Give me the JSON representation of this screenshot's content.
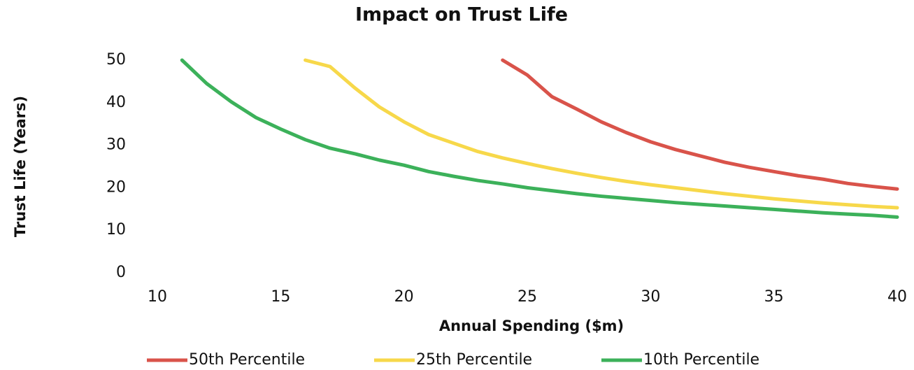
{
  "chart_data": {
    "type": "line",
    "title": "Impact on Trust Life",
    "x_label": "Annual Spending ($m)",
    "y_label": "Trust  Life (Years)",
    "x": [
      10,
      11,
      12,
      13,
      14,
      15,
      16,
      17,
      18,
      19,
      20,
      21,
      22,
      23,
      24,
      25,
      26,
      27,
      28,
      29,
      30,
      31,
      32,
      33,
      34,
      35,
      36,
      37,
      38,
      39,
      40
    ],
    "series": [
      {
        "name": "50th Percentile",
        "color": "#d9534a",
        "values": [
          null,
          null,
          null,
          null,
          null,
          null,
          null,
          null,
          null,
          null,
          null,
          null,
          null,
          null,
          50,
          46.5,
          41.4,
          38.5,
          35.5,
          33,
          30.8,
          29,
          27.5,
          26,
          24.8,
          23.8,
          22.8,
          22,
          21,
          20.3,
          19.7
        ]
      },
      {
        "name": "25th Percentile",
        "color": "#f7d84a",
        "values": [
          null,
          null,
          null,
          null,
          null,
          null,
          50,
          48.5,
          43.5,
          39,
          35.5,
          32.5,
          30.5,
          28.5,
          27,
          25.7,
          24.5,
          23.4,
          22.4,
          21.5,
          20.7,
          20,
          19.3,
          18.6,
          18,
          17.4,
          16.9,
          16.4,
          16,
          15.6,
          15.3
        ]
      },
      {
        "name": "10th Percentile",
        "color": "#3cb15a",
        "values": [
          null,
          50,
          44.5,
          40.2,
          36.5,
          33.8,
          31.3,
          29.3,
          28,
          26.5,
          25.3,
          23.8,
          22.7,
          21.7,
          20.9,
          20,
          19.3,
          18.6,
          18,
          17.5,
          17,
          16.5,
          16.1,
          15.7,
          15.3,
          14.9,
          14.5,
          14.1,
          13.8,
          13.5,
          13.1
        ]
      }
    ],
    "xlim": [
      10,
      40
    ],
    "xticks": [
      10,
      15,
      20,
      25,
      30,
      35,
      40
    ],
    "ylim": [
      0,
      50
    ],
    "yticks": [
      0,
      10,
      20,
      30,
      40,
      50
    ],
    "grid": false,
    "legend": "bottom"
  }
}
